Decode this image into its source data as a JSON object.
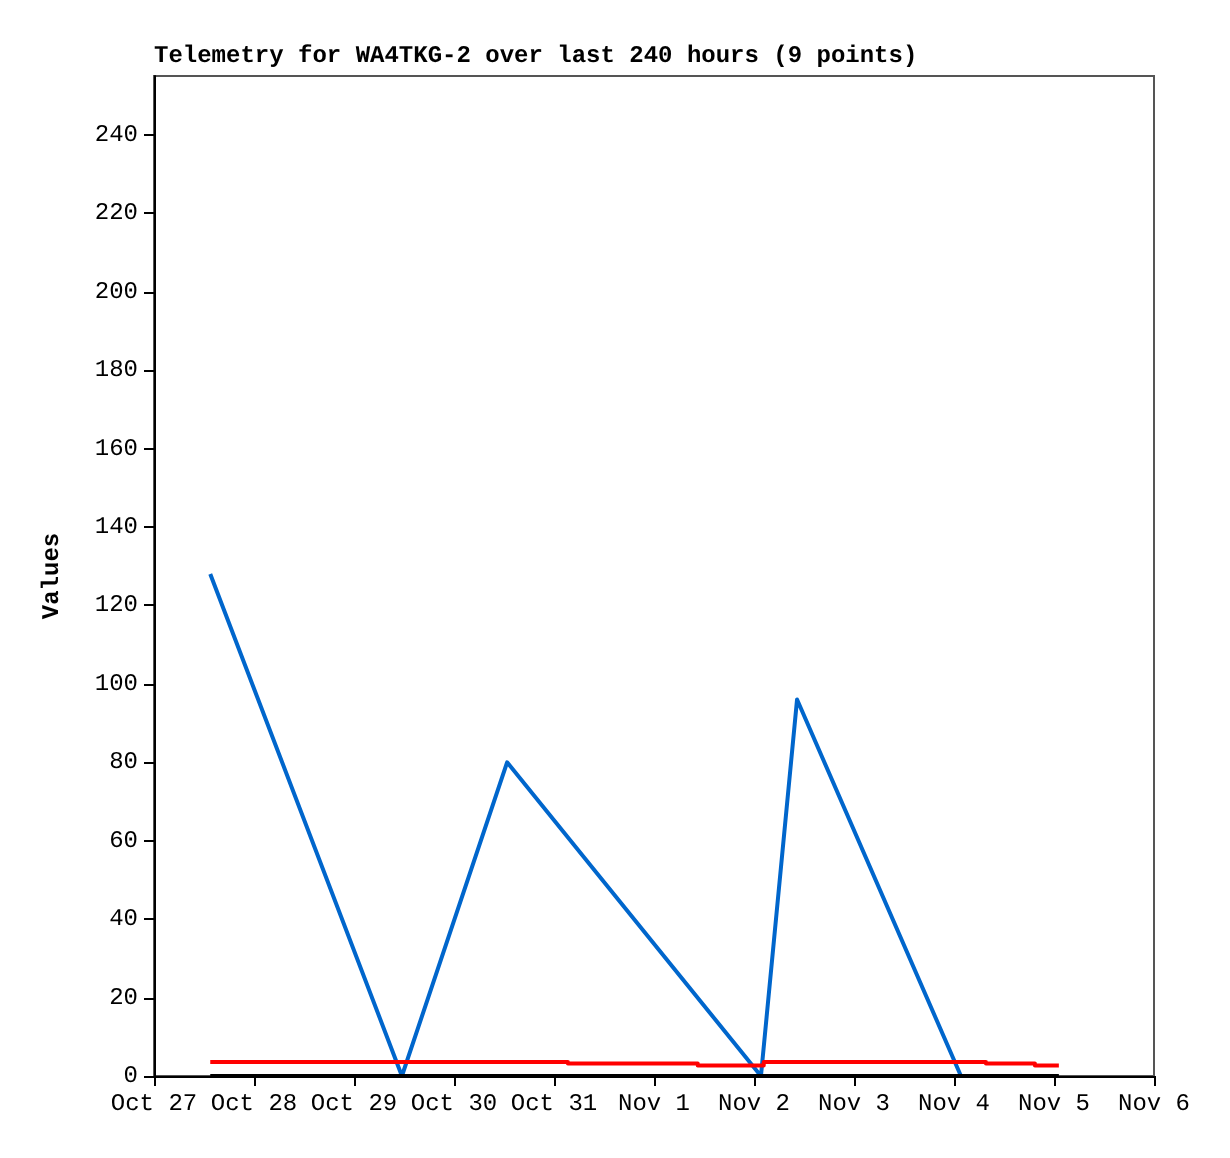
{
  "chart_data": {
    "type": "line",
    "title": "Telemetry for WA4TKG-2 over last 240 hours (9 points)",
    "ylabel": "Values",
    "xlim": [
      "--10-27",
      "--11-06"
    ],
    "xticks": [
      {
        "value": "--10-27",
        "label": "Oct 27"
      },
      {
        "value": "--10-28",
        "label": "Oct 28"
      },
      {
        "value": "--10-29",
        "label": "Oct 29"
      },
      {
        "value": "--10-30",
        "label": "Oct 30"
      },
      {
        "value": "--10-31",
        "label": "Oct 31"
      },
      {
        "value": "--11-01",
        "label": "Nov 1"
      },
      {
        "value": "--11-02",
        "label": "Nov 2"
      },
      {
        "value": "--11-03",
        "label": "Nov 3"
      },
      {
        "value": "--11-04",
        "label": "Nov 4"
      },
      {
        "value": "--11-05",
        "label": "Nov 5"
      },
      {
        "value": "--11-06",
        "label": "Nov 6"
      }
    ],
    "ylim": [
      0,
      255
    ],
    "yticks": [
      0,
      20,
      40,
      60,
      80,
      100,
      120,
      140,
      160,
      180,
      200,
      220,
      240
    ],
    "grid": false,
    "series": [
      {
        "type": "line",
        "color": "#0066cc",
        "x": [
          "--10-27T13:30",
          "--10-29T11:30",
          "--10-30T12:45",
          "--11-02T01:40",
          "--11-02T10:20",
          "--11-04T01:40"
        ],
        "values": [
          128,
          0,
          80,
          0,
          96,
          0
        ]
      },
      {
        "type": "step",
        "color": "#ff0000",
        "x": [
          "--10-27T13:30",
          "--10-31T03:20",
          "--11-01T10:30",
          "--11-02T02:20",
          "--11-04T07:40",
          "--11-04T19:25",
          "--11-05T01:10"
        ],
        "values": [
          3.6,
          3.2,
          2.7,
          3.6,
          3.2,
          2.7,
          2.7
        ]
      },
      {
        "type": "line",
        "color": "#000000",
        "x": [
          "--10-27T13:30",
          "--11-05T01:10"
        ],
        "values": [
          0,
          0
        ]
      }
    ]
  }
}
